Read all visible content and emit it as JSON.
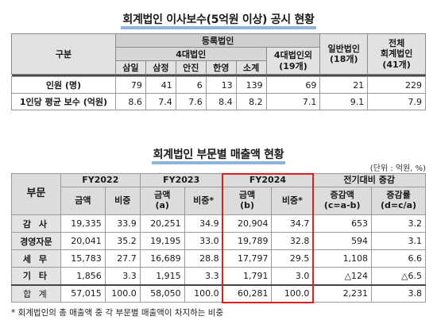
{
  "table1": {
    "title": "회계법인 이사보수(5억원 이상) 공시 현황",
    "col_header": "구분",
    "group_header": "등록법인",
    "subgroup_header": "4대법인",
    "subcols": [
      "삼일",
      "삼정",
      "안진",
      "한영",
      "소계"
    ],
    "outside_big4": "4대법인외\n(19개)",
    "general": "일반법인\n(18개)",
    "total": "전체\n회계법인\n(41개)",
    "rows": [
      {
        "label": "인원 (명)",
        "values": [
          "79",
          "41",
          "6",
          "13",
          "139",
          "69",
          "21",
          "229"
        ]
      },
      {
        "label": "1인당 평균 보수 (억원)",
        "values": [
          "8.6",
          "7.4",
          "7.6",
          "8.4",
          "8.2",
          "7.1",
          "9.1",
          "7.9"
        ]
      }
    ]
  },
  "table2": {
    "title": "회계법인 부문별 매출액 현황",
    "unit": "(단위 : 억원, %)",
    "col_header": "부문",
    "years": [
      "FY2022",
      "FY2023",
      "FY2024"
    ],
    "yoy": "전기대비 증감",
    "sub": {
      "amount": "금액",
      "ratio": "비중",
      "amount_a": "금액\n(a)",
      "ratio_star": "비중*",
      "amount_b": "금액\n(b)",
      "ratio_star2": "비중*",
      "diff": "증감액\n(c=a-b)",
      "rate": "증감률\n(d=c/a)"
    },
    "rows": [
      {
        "label": "감 사",
        "values": [
          "19,335",
          "33.9",
          "20,251",
          "34.9",
          "20,904",
          "34.7",
          "653",
          "3.2"
        ]
      },
      {
        "label": "경영자문",
        "values": [
          "20,041",
          "35.2",
          "19,195",
          "33.0",
          "19,789",
          "32.8",
          "594",
          "3.1"
        ]
      },
      {
        "label": "세 무",
        "values": [
          "15,783",
          "27.7",
          "16,689",
          "28.8",
          "17,797",
          "29.5",
          "1,108",
          "6.6"
        ]
      },
      {
        "label": "기 타",
        "values": [
          "1,856",
          "3.3",
          "1,915",
          "3.3",
          "1,791",
          "3.0",
          "△124",
          "△6.5"
        ]
      },
      {
        "label": "합 계",
        "values": [
          "57,015",
          "100.0",
          "58,050",
          "100.0",
          "60,281",
          "100.0",
          "2,231",
          "3.8"
        ]
      }
    ],
    "footnote": "* 회계법인의 총 매출액 중 각 부문별 매출액이 차지하는 비중",
    "highlight_color": "#e01f1f"
  }
}
